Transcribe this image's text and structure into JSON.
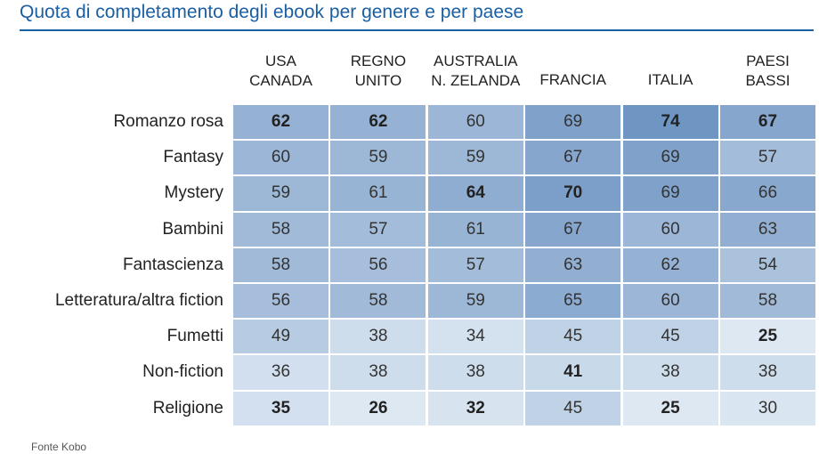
{
  "title": "Quota di completamento degli ebook per genere e per paese",
  "source": "Fonte Kobo",
  "chart_data": {
    "type": "table",
    "columns": [
      {
        "line1": "USA",
        "line2": "CANADA"
      },
      {
        "line1": "REGNO",
        "line2": "UNITO"
      },
      {
        "line1": "AUSTRALIA",
        "line2": "N. ZELANDA"
      },
      {
        "line1": "",
        "line2": "FRANCIA"
      },
      {
        "line1": "",
        "line2": "ITALIA"
      },
      {
        "line1": "PAESI",
        "line2": "BASSI"
      }
    ],
    "rows": [
      {
        "label": "Romanzo rosa",
        "values": [
          62,
          62,
          60,
          69,
          74,
          67
        ],
        "bold": [
          true,
          true,
          false,
          false,
          true,
          true
        ]
      },
      {
        "label": "Fantasy",
        "values": [
          60,
          59,
          59,
          67,
          69,
          57
        ],
        "bold": [
          false,
          false,
          false,
          false,
          false,
          false
        ]
      },
      {
        "label": "Mystery",
        "values": [
          59,
          61,
          64,
          70,
          69,
          66
        ],
        "bold": [
          false,
          false,
          true,
          true,
          false,
          false
        ]
      },
      {
        "label": "Bambini",
        "values": [
          58,
          57,
          61,
          67,
          60,
          63
        ],
        "bold": [
          false,
          false,
          false,
          false,
          false,
          false
        ]
      },
      {
        "label": "Fantascienza",
        "values": [
          58,
          56,
          57,
          63,
          62,
          54
        ],
        "bold": [
          false,
          false,
          false,
          false,
          false,
          false
        ]
      },
      {
        "label": "Letteratura/altra fiction",
        "values": [
          56,
          58,
          59,
          65,
          60,
          58
        ],
        "bold": [
          false,
          false,
          false,
          false,
          false,
          false
        ]
      },
      {
        "label": "Fumetti",
        "values": [
          49,
          38,
          34,
          45,
          45,
          25
        ],
        "bold": [
          false,
          false,
          false,
          false,
          false,
          true
        ]
      },
      {
        "label": "Non-fiction",
        "values": [
          36,
          38,
          38,
          41,
          38,
          38
        ],
        "bold": [
          false,
          false,
          false,
          true,
          false,
          false
        ]
      },
      {
        "label": "Religione",
        "values": [
          35,
          26,
          32,
          45,
          25,
          30
        ],
        "bold": [
          true,
          true,
          true,
          false,
          true,
          false
        ]
      }
    ],
    "color_scale": {
      "low": "#dde8f3",
      "high": "#6f95c3"
    }
  }
}
